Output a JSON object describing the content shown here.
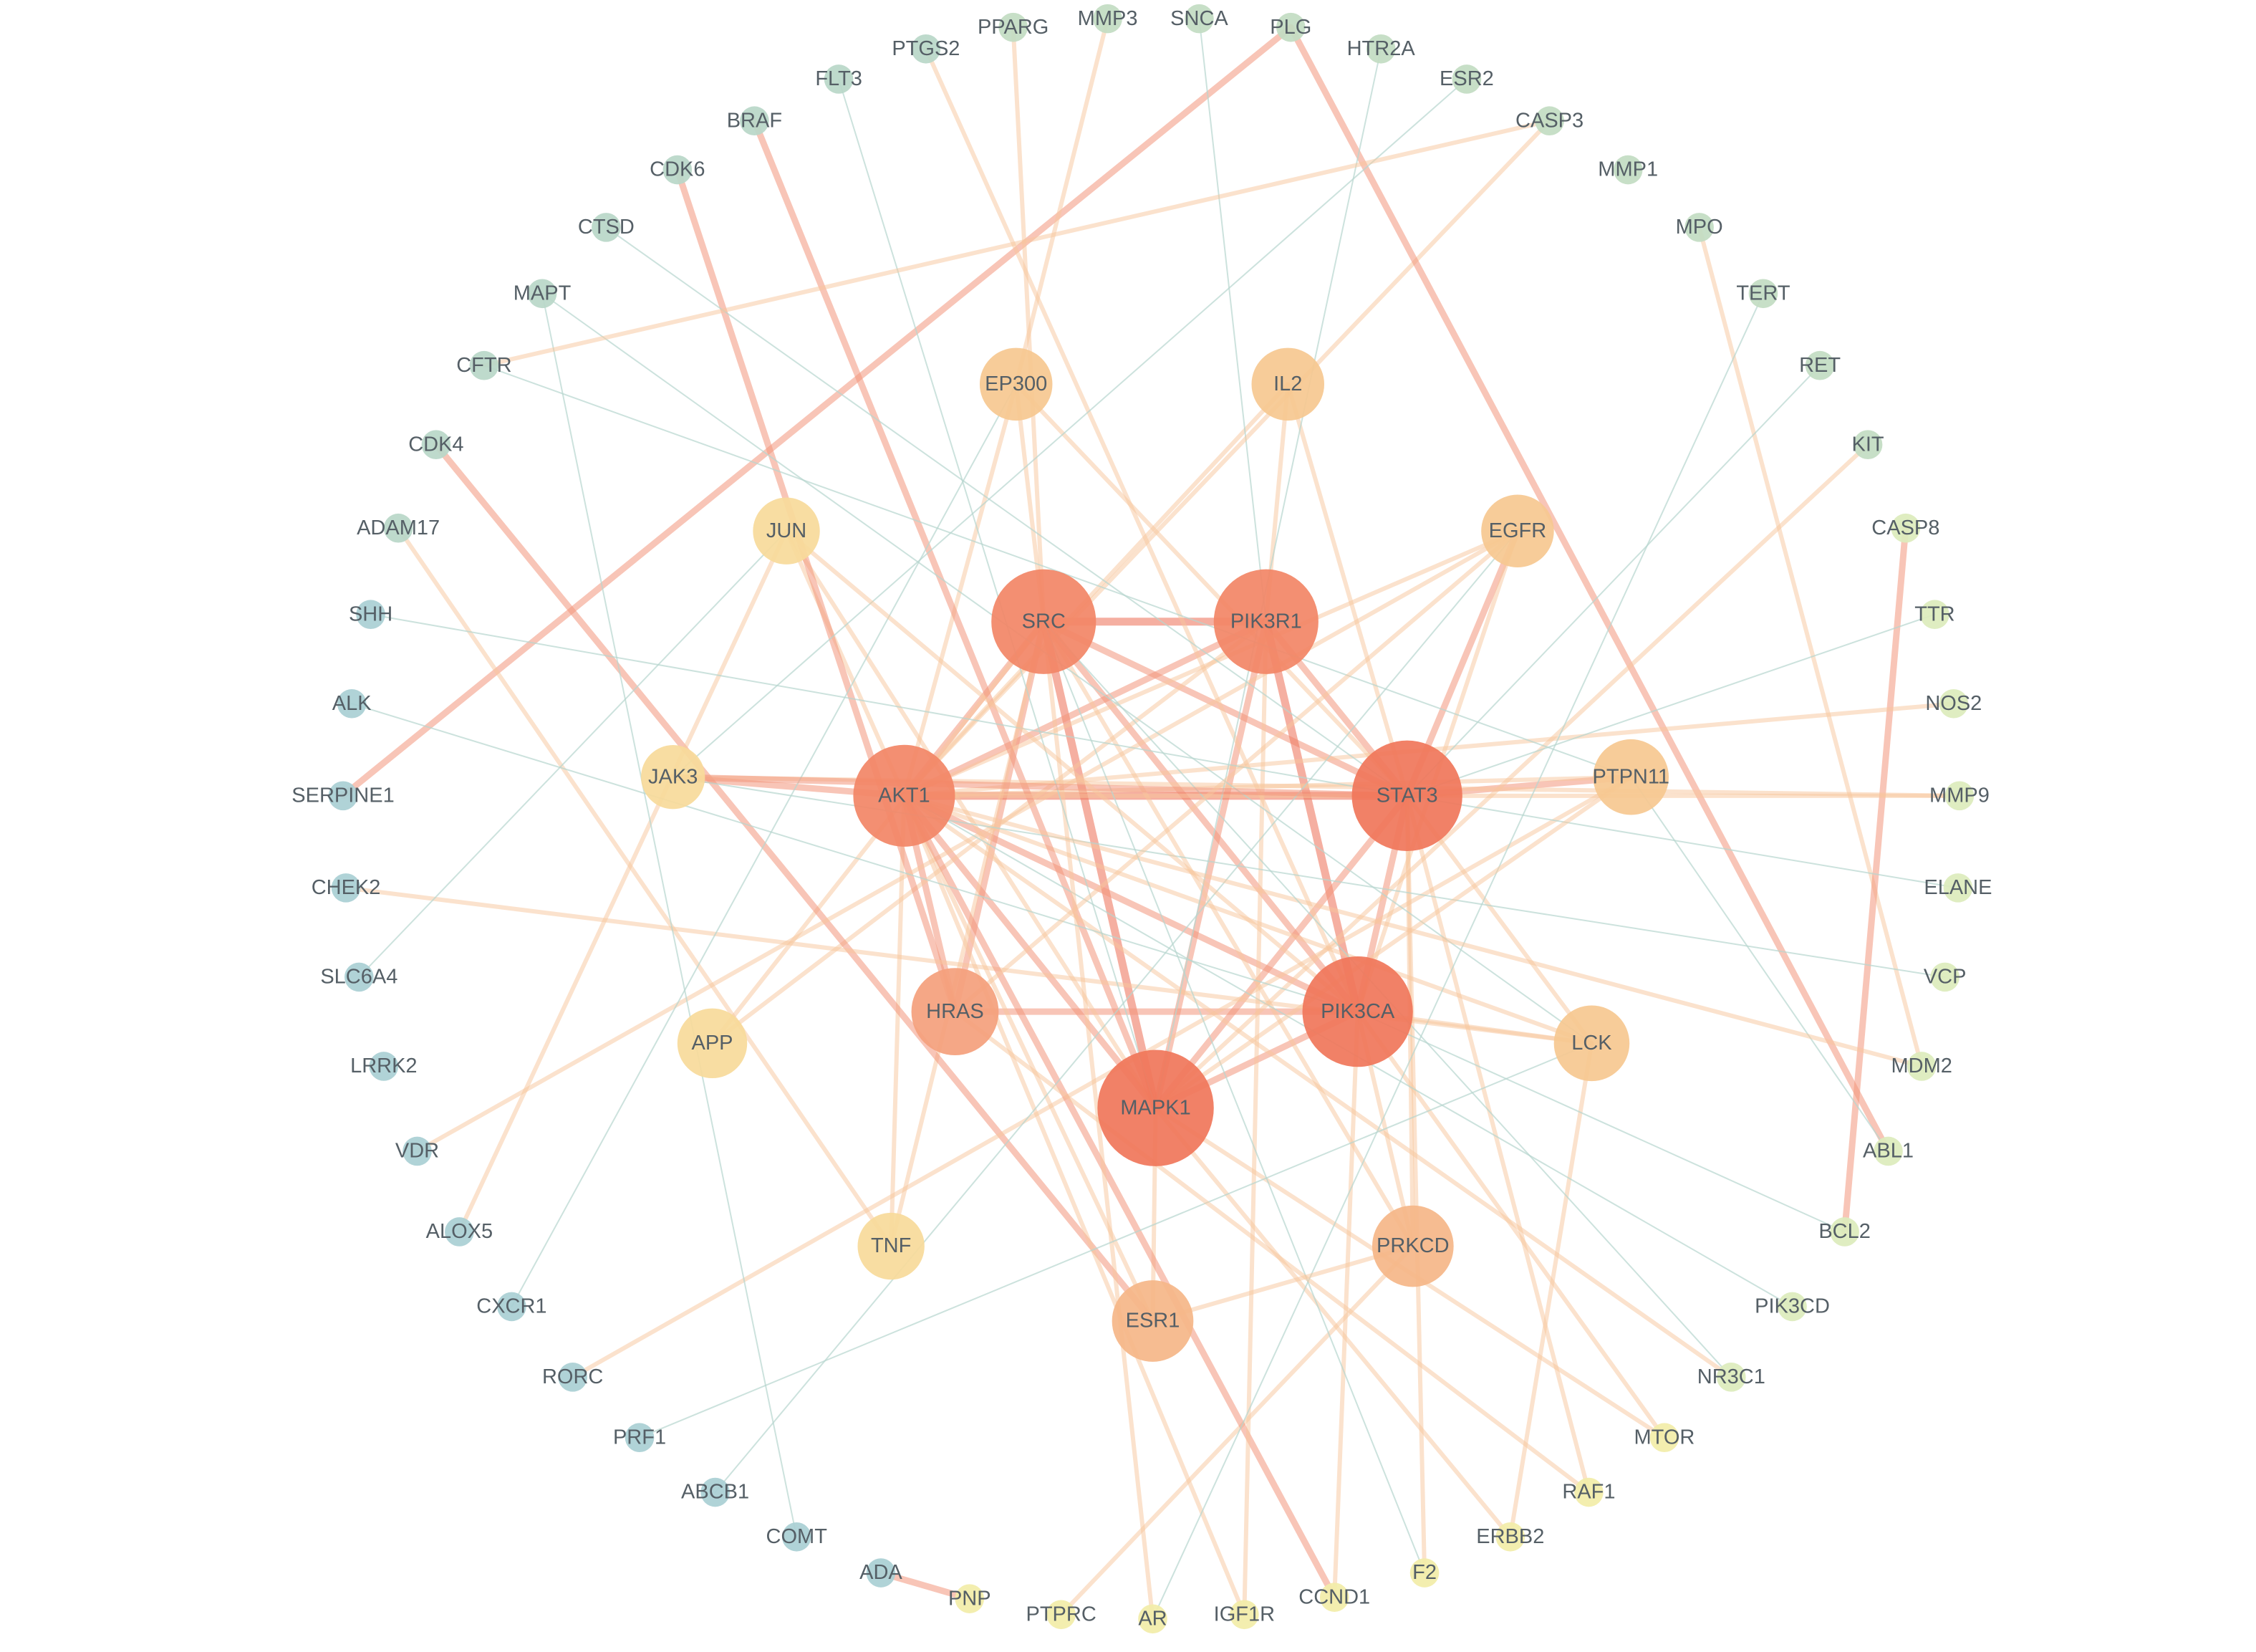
{
  "nodes": [
    {
      "label": "PPARG"
    },
    {
      "label": "MMP3"
    },
    {
      "label": "SNCA"
    },
    {
      "label": "PLG"
    },
    {
      "label": "HTR2A"
    },
    {
      "label": "ESR2"
    },
    {
      "label": "CASP3"
    },
    {
      "label": "MMP1"
    },
    {
      "label": "MPO"
    },
    {
      "label": "TERT"
    },
    {
      "label": "RET"
    },
    {
      "label": "KIT"
    },
    {
      "label": "CASP8"
    },
    {
      "label": "TTR"
    },
    {
      "label": "NOS2"
    },
    {
      "label": "MMP9"
    },
    {
      "label": "ELANE"
    },
    {
      "label": "VCP"
    },
    {
      "label": "MDM2"
    },
    {
      "label": "ABL1"
    },
    {
      "label": "BCL2"
    },
    {
      "label": "PIK3CD"
    },
    {
      "label": "NR3C1"
    },
    {
      "label": "MTOR"
    },
    {
      "label": "RAF1"
    },
    {
      "label": "ERBB2"
    },
    {
      "label": "F2"
    },
    {
      "label": "CCND1"
    },
    {
      "label": "IGF1R"
    },
    {
      "label": "AR"
    },
    {
      "label": "PTPRC"
    },
    {
      "label": "PNP"
    },
    {
      "label": "ADA"
    },
    {
      "label": "COMT"
    },
    {
      "label": "ABCB1"
    },
    {
      "label": "PRF1"
    },
    {
      "label": "RORC"
    },
    {
      "label": "CXCR1"
    },
    {
      "label": "ALOX5"
    },
    {
      "label": "VDR"
    },
    {
      "label": "LRRK2"
    },
    {
      "label": "SLC6A4"
    },
    {
      "label": "CHEK2"
    },
    {
      "label": "SERPINE1"
    },
    {
      "label": "ALK"
    },
    {
      "label": "SHH"
    },
    {
      "label": "ADAM17"
    },
    {
      "label": "CDK4"
    },
    {
      "label": "CFTR"
    },
    {
      "label": "MAPT"
    },
    {
      "label": "CTSD"
    },
    {
      "label": "CDK6"
    },
    {
      "label": "BRAF"
    },
    {
      "label": "FLT3"
    },
    {
      "label": "PTGS2"
    },
    {
      "label": "EP300"
    },
    {
      "label": "IL2"
    },
    {
      "label": "JUN"
    },
    {
      "label": "EGFR"
    },
    {
      "label": "SRC"
    },
    {
      "label": "PIK3R1"
    },
    {
      "label": "JAK3"
    },
    {
      "label": "AKT1"
    },
    {
      "label": "STAT3"
    },
    {
      "label": "PTPN11"
    },
    {
      "label": "HRAS"
    },
    {
      "label": "PIK3CA"
    },
    {
      "label": "APP"
    },
    {
      "label": "LCK"
    },
    {
      "label": "MAPK1"
    },
    {
      "label": "TNF"
    },
    {
      "label": "PRKCD"
    },
    {
      "label": "ESR1"
    }
  ]
}
